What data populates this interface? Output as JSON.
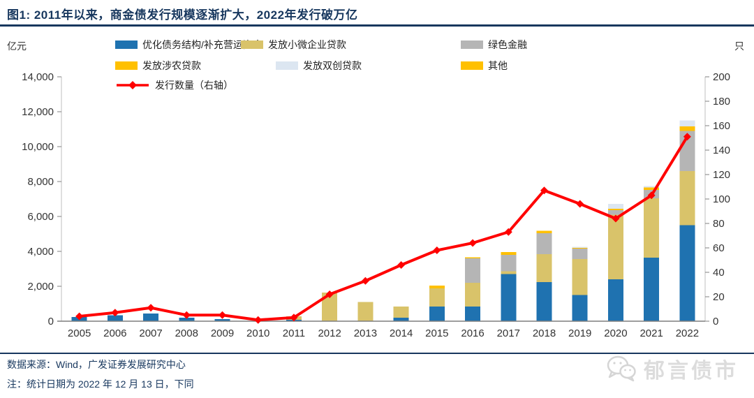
{
  "header": {
    "title": "图1:  2011年以来，商金债发行规模逐渐扩大，2022年发行破万亿"
  },
  "axes": {
    "left_unit": "亿元",
    "right_unit": "只"
  },
  "legend": {
    "items": [
      {
        "label": "优化债务结构/补充营运资金",
        "color": "#1F72B0",
        "type": "swatch"
      },
      {
        "label": "发放小微企业贷款",
        "color": "#D9C36A",
        "type": "swatch"
      },
      {
        "label": "绿色金融",
        "color": "#B5B5B5",
        "type": "swatch"
      },
      {
        "label": "发放涉农贷款",
        "color": "#FFC000",
        "type": "swatch"
      },
      {
        "label": "发放双创贷款",
        "color": "#DCE6F1",
        "type": "swatch"
      },
      {
        "label": "其他",
        "color": "#FFC000",
        "type": "swatch"
      },
      {
        "label": "发行数量（右轴）",
        "color": "#FF0000",
        "type": "line"
      }
    ]
  },
  "chart_data": {
    "type": "bar",
    "subtype": "stacked-bar-with-line",
    "title": "图1:  2011年以来，商金债发行规模逐渐扩大，2022年发行破万亿",
    "categories": [
      "2005",
      "2006",
      "2007",
      "2008",
      "2009",
      "2010",
      "2011",
      "2012",
      "2013",
      "2014",
      "2015",
      "2016",
      "2017",
      "2018",
      "2019",
      "2020",
      "2021",
      "2022"
    ],
    "series": [
      {
        "name": "优化债务结构/补充营运资金",
        "color": "#1F72B0",
        "values": [
          250,
          350,
          450,
          200,
          120,
          0,
          80,
          0,
          0,
          210,
          850,
          850,
          2700,
          2250,
          1500,
          2400,
          3650,
          5500
        ]
      },
      {
        "name": "发放小微企业贷款",
        "color": "#D9C36A",
        "values": [
          0,
          0,
          0,
          0,
          0,
          0,
          200,
          1650,
          1100,
          630,
          1030,
          1350,
          170,
          1600,
          2070,
          3700,
          3400,
          3100
        ]
      },
      {
        "name": "绿色金融",
        "color": "#B5B5B5",
        "values": [
          0,
          0,
          0,
          0,
          0,
          0,
          0,
          0,
          0,
          0,
          0,
          1400,
          930,
          1200,
          600,
          270,
          480,
          2300
        ]
      },
      {
        "name": "发放涉农贷款",
        "color": "#FFC000",
        "values": [
          0,
          0,
          0,
          0,
          0,
          0,
          0,
          0,
          0,
          0,
          170,
          60,
          160,
          130,
          40,
          80,
          130,
          270
        ]
      },
      {
        "name": "发放双创贷款",
        "color": "#DCE6F1",
        "values": [
          0,
          0,
          0,
          0,
          0,
          0,
          0,
          0,
          0,
          0,
          0,
          0,
          0,
          0,
          60,
          270,
          80,
          330
        ]
      },
      {
        "name": "其他",
        "color": "#FFC000",
        "values": [
          0,
          0,
          0,
          0,
          0,
          0,
          0,
          0,
          0,
          0,
          0,
          0,
          0,
          0,
          0,
          0,
          0,
          0
        ]
      }
    ],
    "line_series": {
      "name": "发行数量（右轴）",
      "color": "#FF0000",
      "axis": "right",
      "values": [
        4,
        7,
        11,
        5,
        5,
        1,
        3,
        22,
        33,
        46,
        58,
        64,
        73,
        107,
        96,
        84,
        103,
        151
      ]
    },
    "left_axis": {
      "unit": "亿元",
      "min": 0,
      "max": 14000,
      "step": 2000
    },
    "right_axis": {
      "unit": "只",
      "min": 0,
      "max": 200,
      "step": 20
    },
    "grid": false,
    "legend_position": "top"
  },
  "footer": {
    "source": "数据来源：Wind，广发证券发展研究中心",
    "note": "注：统计日期为 2022 年 12 月 13 日，下同"
  },
  "watermark": {
    "icon": "wechat-icon",
    "label": "郁言债市"
  }
}
